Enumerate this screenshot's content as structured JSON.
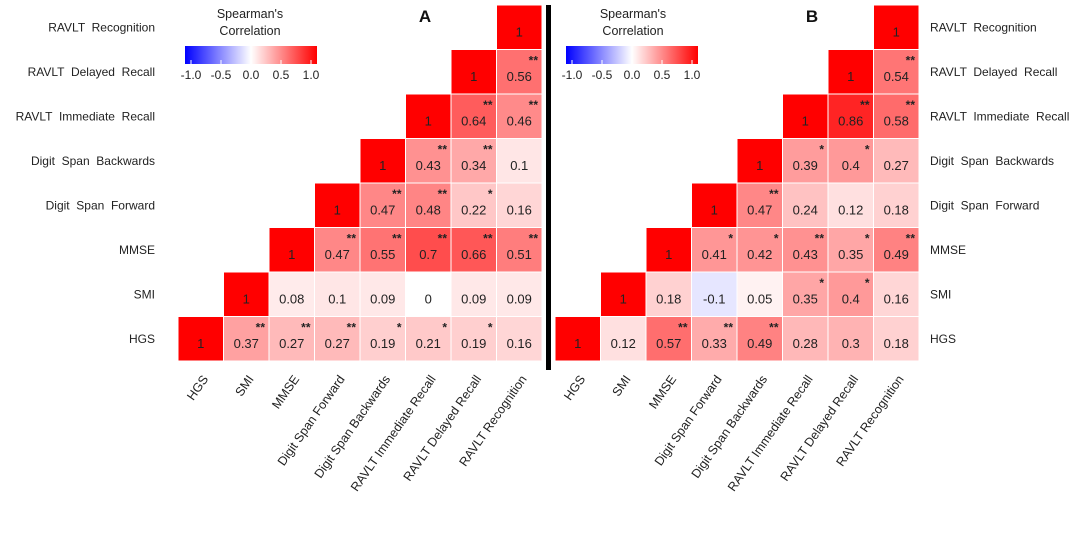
{
  "chart_data": [
    {
      "type": "heatmap",
      "panel_label": "A",
      "legend_title_line1": "Spearman's",
      "legend_title_line2": "Correlation",
      "legend_ticks": [
        "-1.0",
        "-0.5",
        "0.0",
        "0.5",
        "1.0"
      ],
      "scale_range": [
        -1,
        1
      ],
      "variables": [
        "HGS",
        "SMI",
        "MMSE",
        "Digit Span Forward",
        "Digit Span Backwards",
        "RAVLT Immediate Recall",
        "RAVLT Delayed Recall",
        "RAVLT Recognition"
      ],
      "row_labels": [
        "HGS",
        "SMI",
        "MMSE",
        "Digit  Span  Forward",
        "Digit  Span  Backwards",
        "RAVLT  Immediate  Recall",
        "RAVLT  Delayed  Recall",
        "RAVLT  Recognition"
      ],
      "col_labels": [
        "HGS",
        "SMI",
        "MMSE",
        "Digit Span Forward",
        "Digit Span Backwards",
        "RAVLT Immediate Recall",
        "RAVLT Delayed Recall",
        "RAVLT Recognition"
      ],
      "values": [
        [
          1,
          0.37,
          0.27,
          0.27,
          0.19,
          0.21,
          0.19,
          0.16
        ],
        [
          null,
          1,
          0.08,
          0.1,
          0.09,
          0,
          0.09,
          0.09
        ],
        [
          null,
          null,
          1,
          0.47,
          0.55,
          0.7,
          0.66,
          0.51
        ],
        [
          null,
          null,
          null,
          1,
          0.47,
          0.48,
          0.22,
          0.16
        ],
        [
          null,
          null,
          null,
          null,
          1,
          0.43,
          0.34,
          0.1
        ],
        [
          null,
          null,
          null,
          null,
          null,
          1,
          0.64,
          0.46
        ],
        [
          null,
          null,
          null,
          null,
          null,
          null,
          1,
          0.56
        ],
        [
          null,
          null,
          null,
          null,
          null,
          null,
          null,
          1
        ]
      ],
      "significance": [
        [
          "",
          "**",
          "**",
          "**",
          "*",
          "*",
          "*",
          ""
        ],
        [
          null,
          "",
          "",
          "",
          "",
          "",
          "",
          ""
        ],
        [
          null,
          null,
          "",
          "**",
          "**",
          "**",
          "**",
          "**"
        ],
        [
          null,
          null,
          null,
          "",
          "**",
          "**",
          "*",
          ""
        ],
        [
          null,
          null,
          null,
          null,
          "",
          "**",
          "**",
          ""
        ],
        [
          null,
          null,
          null,
          null,
          null,
          "",
          "**",
          "**"
        ],
        [
          null,
          null,
          null,
          null,
          null,
          null,
          "",
          "**"
        ],
        [
          null,
          null,
          null,
          null,
          null,
          null,
          null,
          ""
        ]
      ],
      "row_label_side": "left"
    },
    {
      "type": "heatmap",
      "panel_label": "B",
      "legend_title_line1": "Spearman's",
      "legend_title_line2": "Correlation",
      "legend_ticks": [
        "-1.0",
        "-0.5",
        "0.0",
        "0.5",
        "1.0"
      ],
      "scale_range": [
        -1,
        1
      ],
      "variables": [
        "HGS",
        "SMI",
        "MMSE",
        "Digit Span Forward",
        "Digit Span Backwards",
        "RAVLT Immediate Recall",
        "RAVLT Delayed Recall",
        "RAVLT Recognition"
      ],
      "row_labels": [
        "HGS",
        "SMI",
        "MMSE",
        "Digit  Span  Forward",
        "Digit  Span  Backwards",
        "RAVLT  Immediate  Recall",
        "RAVLT  Delayed  Recall",
        "RAVLT  Recognition"
      ],
      "col_labels": [
        "HGS",
        "SMI",
        "MMSE",
        "Digit Span Forward",
        "Digit Span Backwards",
        "RAVLT Immediate Recall",
        "RAVLT Delayed Recall",
        "RAVLT Recognition"
      ],
      "values": [
        [
          1,
          0.12,
          0.57,
          0.33,
          0.49,
          0.28,
          0.3,
          0.18
        ],
        [
          null,
          1,
          0.18,
          -0.1,
          0.05,
          0.35,
          0.4,
          0.16
        ],
        [
          null,
          null,
          1,
          0.41,
          0.42,
          0.43,
          0.35,
          0.49
        ],
        [
          null,
          null,
          null,
          1,
          0.47,
          0.24,
          0.12,
          0.18
        ],
        [
          null,
          null,
          null,
          null,
          1,
          0.39,
          0.4,
          0.27
        ],
        [
          null,
          null,
          null,
          null,
          null,
          1,
          0.86,
          0.58
        ],
        [
          null,
          null,
          null,
          null,
          null,
          null,
          1,
          0.54
        ],
        [
          null,
          null,
          null,
          null,
          null,
          null,
          null,
          1
        ]
      ],
      "significance": [
        [
          "",
          "",
          "**",
          "**",
          "**",
          "",
          "",
          ""
        ],
        [
          null,
          "",
          "",
          "",
          "",
          "*",
          "*",
          ""
        ],
        [
          null,
          null,
          "",
          "*",
          "*",
          "**",
          "*",
          "**"
        ],
        [
          null,
          null,
          null,
          "",
          "**",
          "",
          "",
          ""
        ],
        [
          null,
          null,
          null,
          null,
          "",
          "*",
          "*",
          ""
        ],
        [
          null,
          null,
          null,
          null,
          null,
          "",
          "**",
          "**"
        ],
        [
          null,
          null,
          null,
          null,
          null,
          null,
          "",
          "**"
        ],
        [
          null,
          null,
          null,
          null,
          null,
          null,
          null,
          ""
        ]
      ],
      "row_label_side": "right"
    }
  ],
  "colors": {
    "low": "#0000ff",
    "mid": "#ffffff",
    "high": "#ff0000",
    "divider": "#000000",
    "cell_border": "#ffffff"
  }
}
